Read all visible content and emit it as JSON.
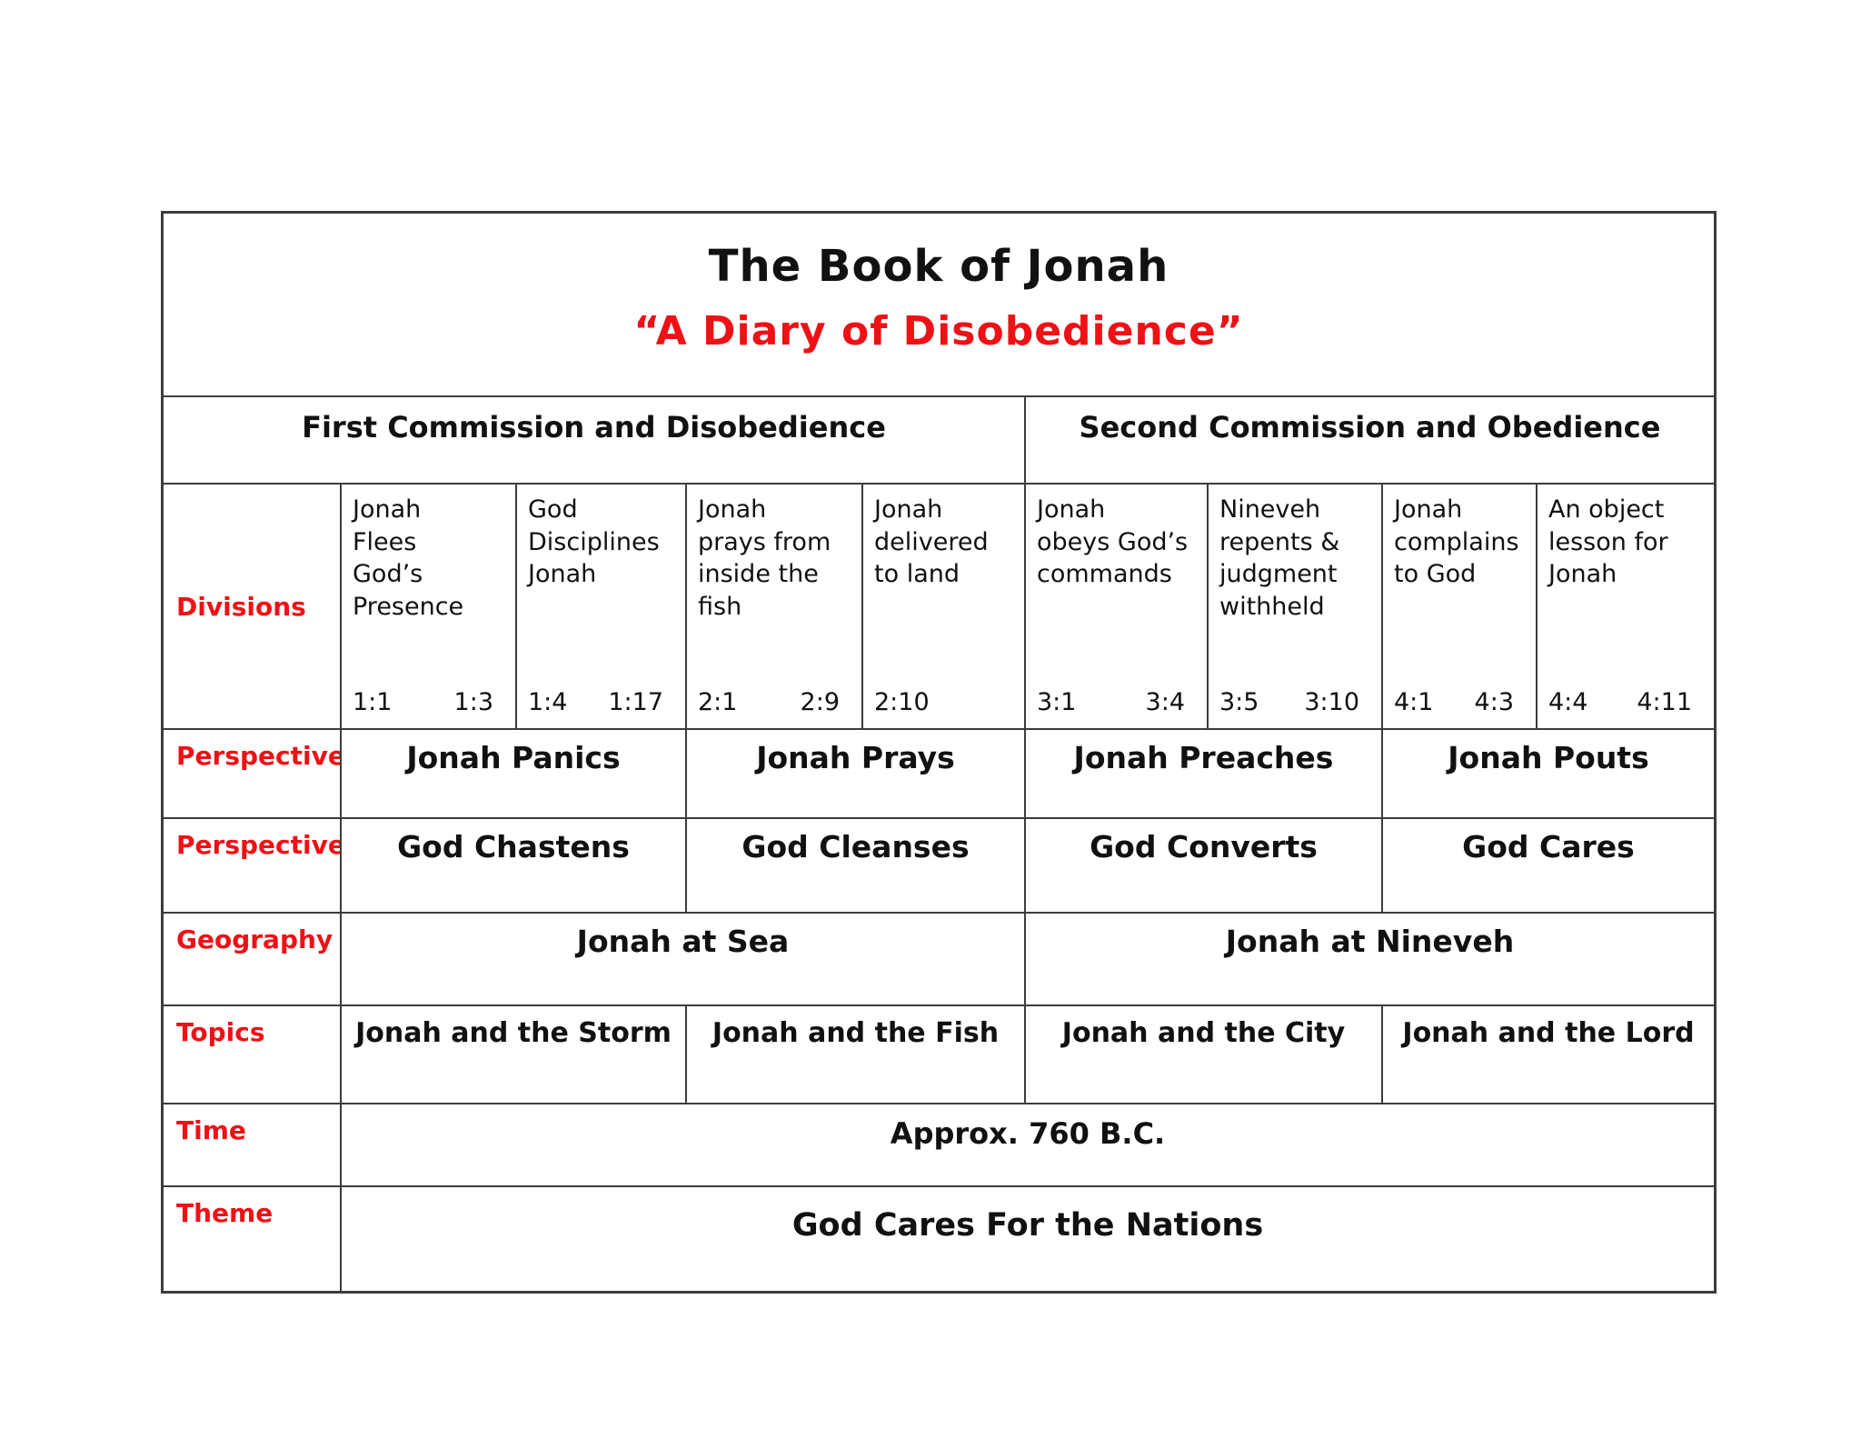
{
  "page": {
    "background": "#ffffff",
    "accent_red": "#ee1115",
    "border_color": "#3c3c3c",
    "text_color": "#111111"
  },
  "title": {
    "line1": "The Book of Jonah",
    "line2": "“A Diary of Disobedience”"
  },
  "commissions": {
    "first": "First Commission and Disobedience",
    "second": "Second Commission and Obedience"
  },
  "divisions": {
    "label": "Divisions",
    "cells": [
      {
        "text": "Jonah\nFlees\nGod’s\nPresence",
        "ref_start": "1:1",
        "ref_end": "1:3"
      },
      {
        "text": "God\nDisciplines\nJonah",
        "ref_start": "1:4",
        "ref_end": "1:17"
      },
      {
        "text": "Jonah\nprays from\ninside the\nfish",
        "ref_start": "2:1",
        "ref_end": "2:9"
      },
      {
        "text": "Jonah\ndelivered\nto land",
        "ref_start": "2:10",
        "ref_end": ""
      },
      {
        "text": "Jonah\nobeys God’s\ncommands",
        "ref_start": "3:1",
        "ref_end": "3:4"
      },
      {
        "text": "Nineveh\nrepents &\njudgment\nwithheld",
        "ref_start": "3:5",
        "ref_end": "3:10"
      },
      {
        "text": "Jonah\ncomplains\nto God",
        "ref_start": "4:1",
        "ref_end": "4:3"
      },
      {
        "text": "An object\nlesson for\nJonah",
        "ref_start": "4:4",
        "ref_end": "4:11"
      }
    ]
  },
  "perspective_jonah": {
    "label": "Perspective",
    "cells": [
      "Jonah Panics",
      "Jonah Prays",
      "Jonah Preaches",
      "Jonah Pouts"
    ]
  },
  "perspective_god": {
    "label": "Perspective",
    "cells": [
      "God Chastens",
      "God Cleanses",
      "God Converts",
      "God Cares"
    ]
  },
  "geography": {
    "label": "Geography",
    "cells": [
      "Jonah at Sea",
      "Jonah at Nineveh"
    ]
  },
  "topics": {
    "label": "Topics",
    "cells": [
      "Jonah and the Storm",
      "Jonah and the Fish",
      "Jonah and the City",
      "Jonah and the Lord"
    ]
  },
  "time": {
    "label": "Time",
    "value": "Approx. 760 B.C."
  },
  "theme": {
    "label": "Theme",
    "value": "God Cares For the Nations"
  }
}
